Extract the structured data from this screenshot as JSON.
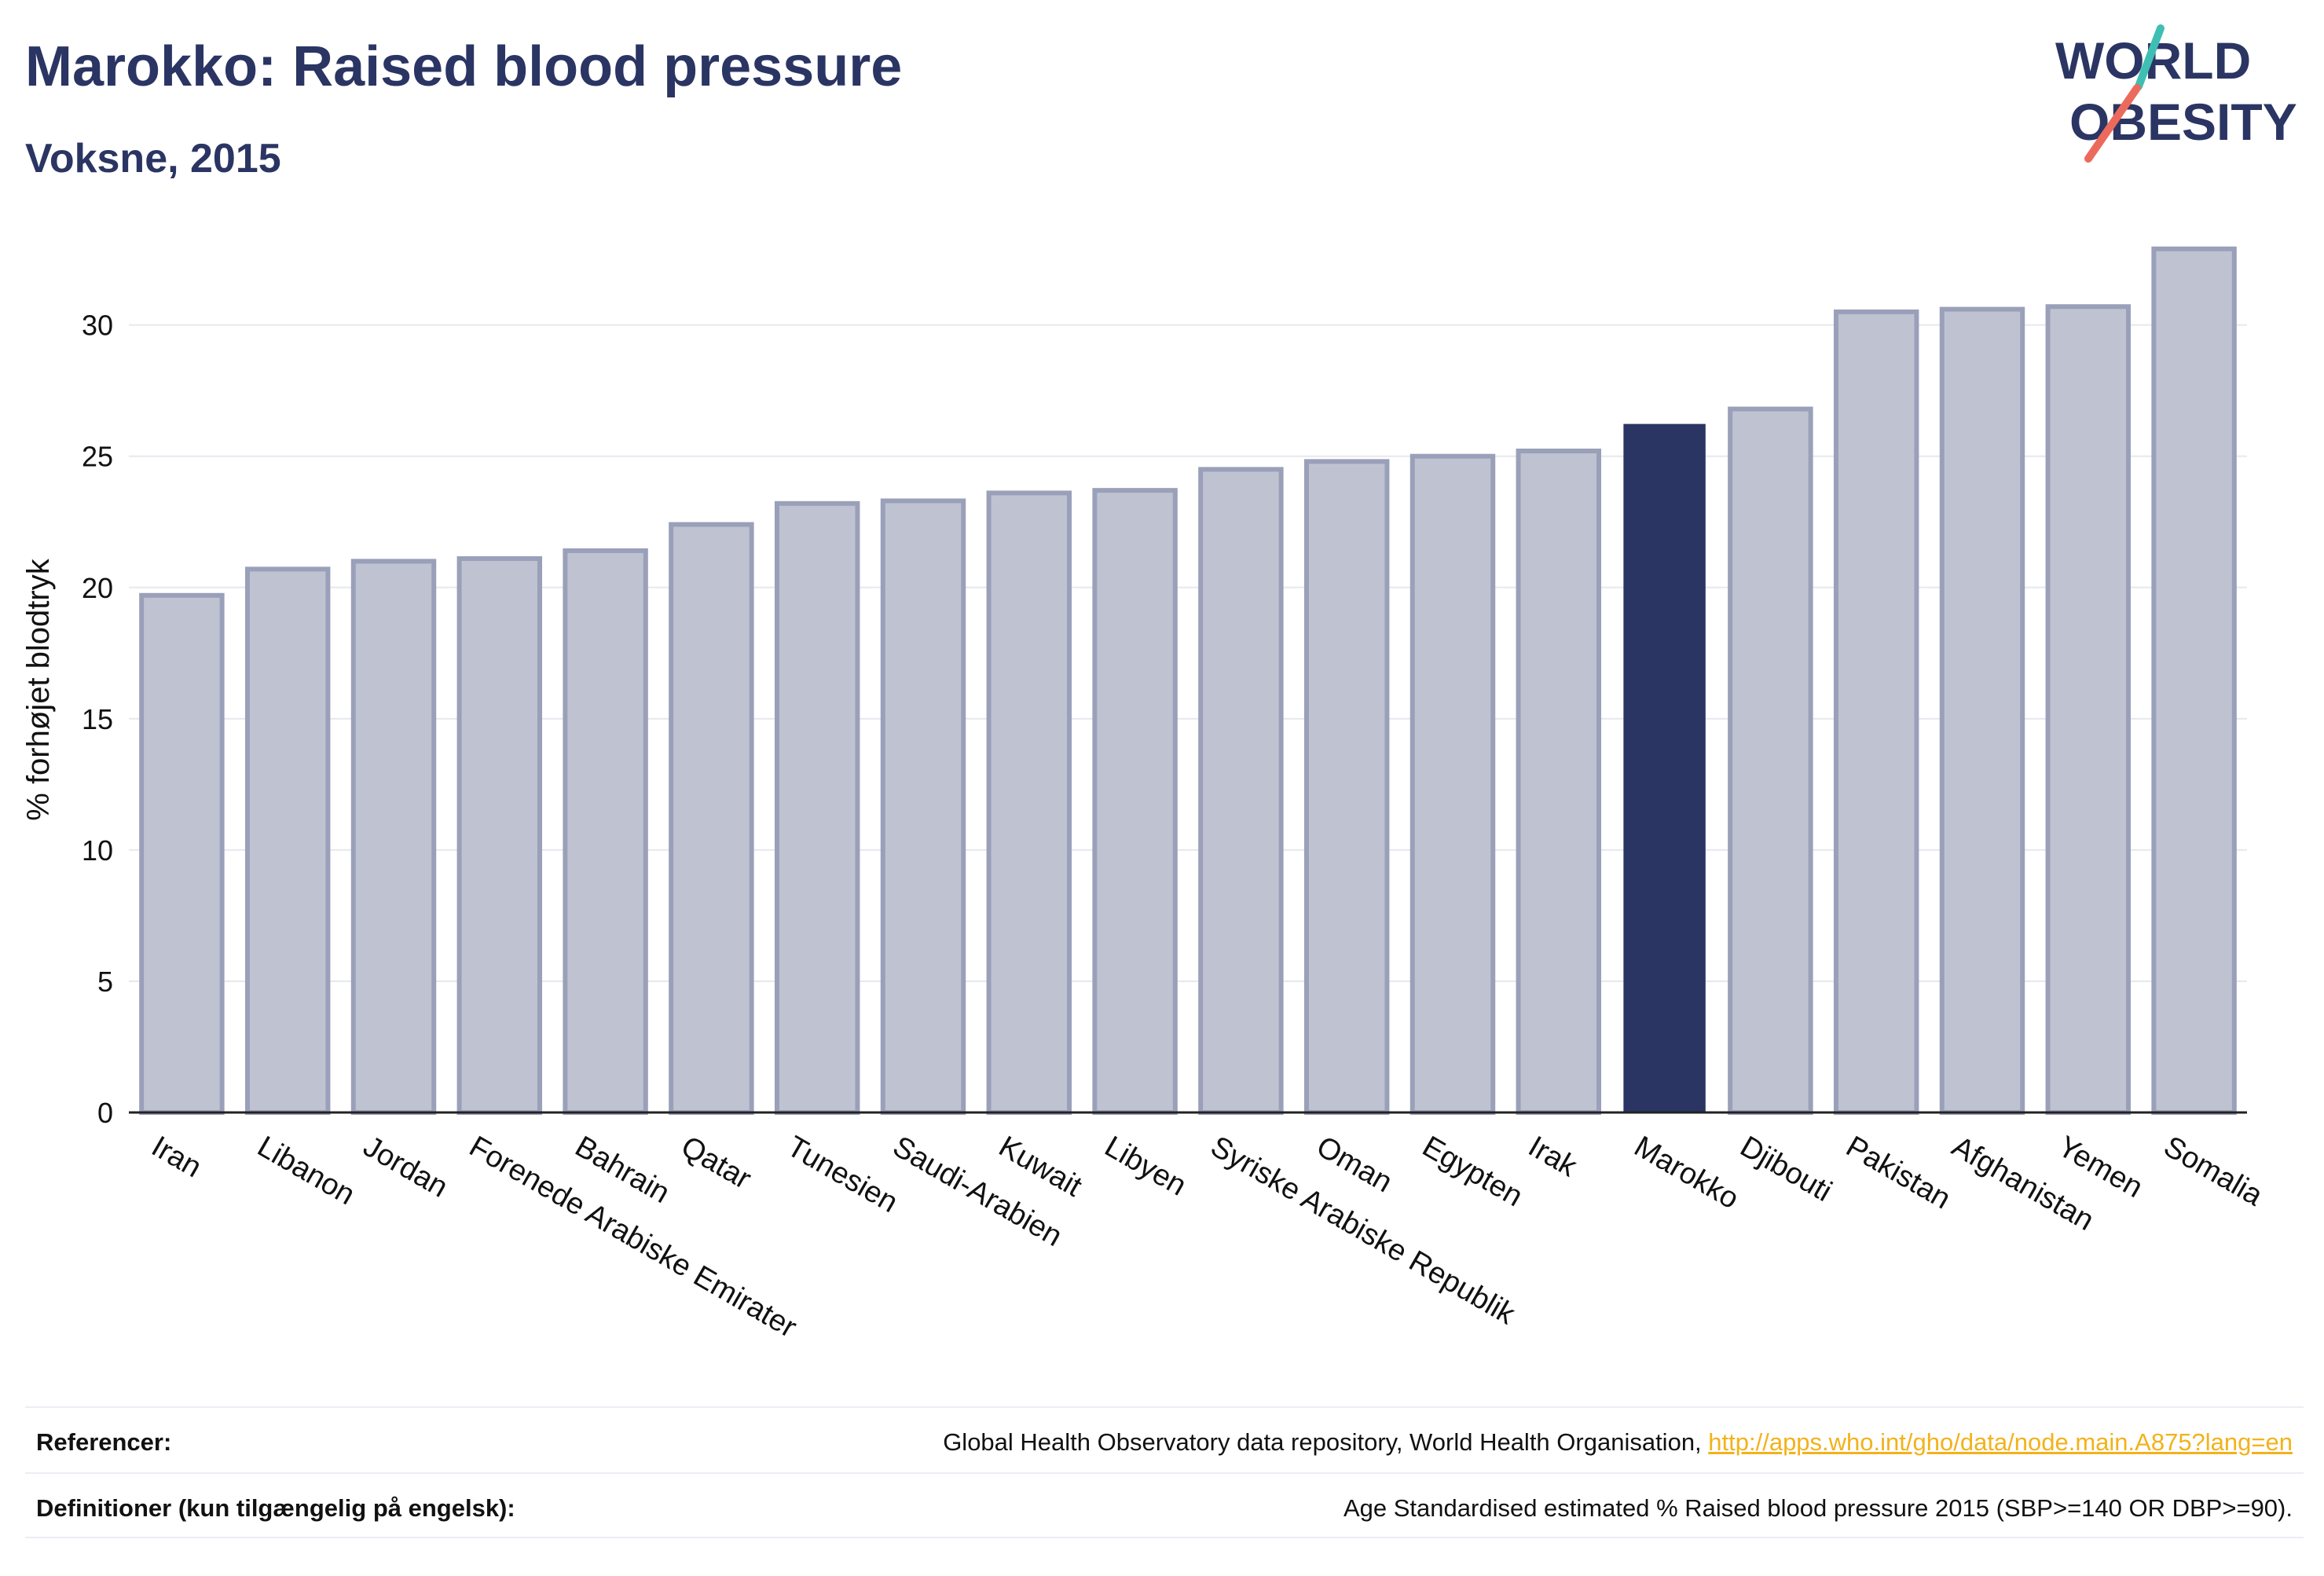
{
  "header": {
    "title": "Marokko: Raised blood pressure",
    "subtitle": "Voksne, 2015"
  },
  "logo": {
    "line1": "WORLD",
    "line2": "OBESITY"
  },
  "footer": {
    "references_label": "Referencer:",
    "references_text": "Global Health Observatory data repository, World Health Organisation, ",
    "references_link": "http://apps.who.int/gho/data/node.main.A875?lang=en",
    "definitions_label": "Definitioner (kun tilgængelig på engelsk):",
    "definitions_text": "Age Standardised estimated % Raised blood pressure 2015 (SBP>=140 OR DBP>=90)."
  },
  "colors": {
    "highlight": "#2b3563",
    "bar_fill": "#bfc3d1",
    "bar_stroke": "#9aa0b9",
    "logo_accent_teal": "#3fbfb3",
    "logo_accent_red": "#ec6a5c",
    "link": "#f2b21a"
  },
  "chart_data": {
    "type": "bar",
    "ylabel": "% forhøjet blodtryk",
    "ylim": [
      0,
      34
    ],
    "yticks": [
      0,
      5,
      10,
      15,
      20,
      25,
      30
    ],
    "grid": true,
    "highlight": "Marokko",
    "categories": [
      "Iran",
      "Libanon",
      "Jordan",
      "Forenede Arabiske Emirater",
      "Bahrain",
      "Qatar",
      "Tunesien",
      "Saudi-Arabien",
      "Kuwait",
      "Libyen",
      "Syriske Arabiske Republik",
      "Oman",
      "Egypten",
      "Irak",
      "Marokko",
      "Djibouti",
      "Pakistan",
      "Afghanistan",
      "Yemen",
      "Somalia"
    ],
    "values": [
      19.7,
      20.7,
      21.0,
      21.1,
      21.4,
      22.4,
      23.2,
      23.3,
      23.6,
      23.7,
      24.5,
      24.8,
      25.0,
      25.2,
      26.2,
      26.8,
      30.5,
      30.6,
      30.7,
      32.9
    ]
  }
}
